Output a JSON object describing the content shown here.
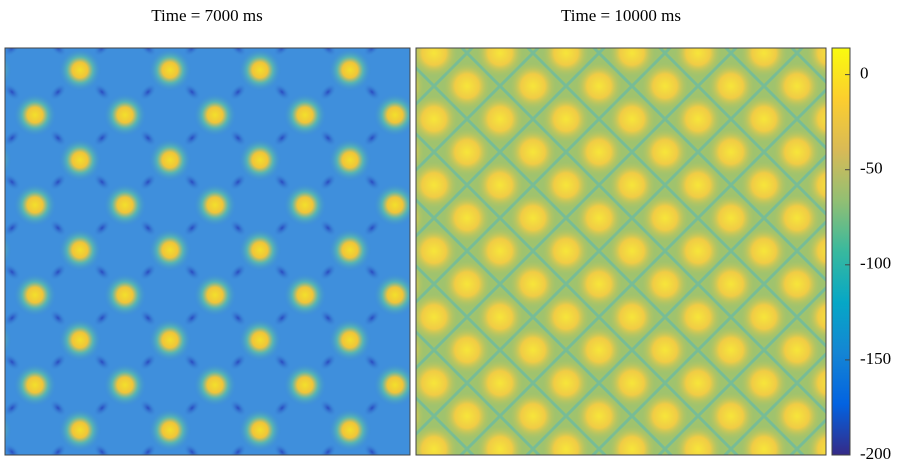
{
  "chart_data": {
    "type": "heatmap",
    "panels": [
      {
        "title": "Time = 7000 ms"
      },
      {
        "title": "Time = 10000 ms"
      }
    ],
    "colorbar": {
      "clim": [
        -200,
        14
      ],
      "ticks": [
        0,
        -50,
        -100,
        -150,
        -200
      ],
      "colormap": [
        "#352a87",
        "#0363e1",
        "#1485d4",
        "#06a7c6",
        "#38b99e",
        "#92bf73",
        "#d9ba56",
        "#fcce2e",
        "#f9fb0e"
      ]
    }
  }
}
